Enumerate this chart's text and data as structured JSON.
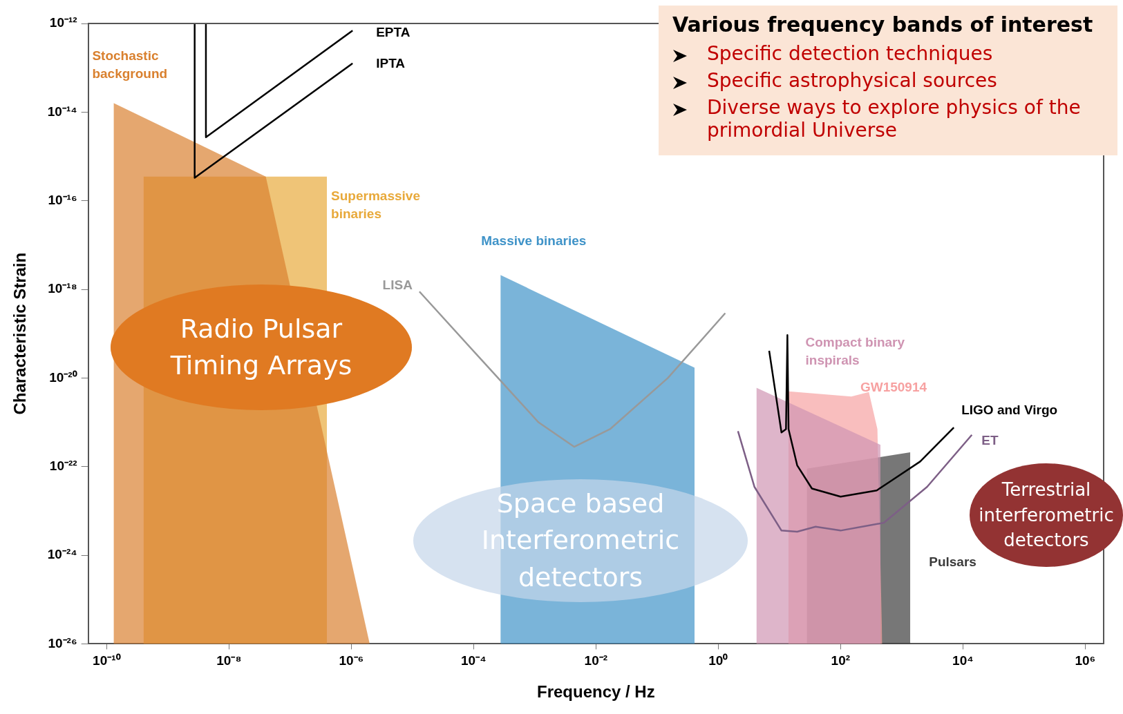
{
  "chart_data": {
    "type": "area",
    "xlabel": "Frequency / Hz",
    "ylabel": "Characteristic Strain",
    "log": "xy",
    "grid": false,
    "legend": false,
    "xlim": [
      5e-11,
      2000000.0
    ],
    "ylim": [
      1e-26,
      1e-12
    ],
    "xticks": [
      {
        "value": 1e-10,
        "label": "10⁻¹⁰"
      },
      {
        "value": 1e-08,
        "label": "10⁻⁸"
      },
      {
        "value": 1e-06,
        "label": "10⁻⁶"
      },
      {
        "value": 0.0001,
        "label": "10⁻⁴"
      },
      {
        "value": 0.01,
        "label": "10⁻²"
      },
      {
        "value": 1,
        "label": "10⁰"
      },
      {
        "value": 100,
        "label": "10²"
      },
      {
        "value": 10000,
        "label": "10⁴"
      },
      {
        "value": 1000000,
        "label": "10⁶"
      }
    ],
    "yticks": [
      {
        "value": 1e-12,
        "label": "10⁻¹²"
      },
      {
        "value": 1e-14,
        "label": "10⁻¹⁴"
      },
      {
        "value": 1e-16,
        "label": "10⁻¹⁶"
      },
      {
        "value": 1e-18,
        "label": "10⁻¹⁸"
      },
      {
        "value": 1e-20,
        "label": "10⁻²⁰"
      },
      {
        "value": 1e-22,
        "label": "10⁻²²"
      },
      {
        "value": 1e-24,
        "label": "10⁻²⁴"
      },
      {
        "value": 1e-26,
        "label": "10⁻²⁶"
      }
    ],
    "series": [
      {
        "name": "Stochastic background",
        "color": "#d9802e",
        "x": [
          1.3e-10,
          4e-08,
          2e-06
        ],
        "values": [
          1.6e-14,
          3.5e-16,
          1e-26
        ]
      },
      {
        "name": "Supermassive binaries",
        "color": "#e8a93a",
        "x": [
          4e-10,
          4e-07
        ],
        "values": [
          3.5e-16,
          3.5e-16
        ]
      },
      {
        "name": "Massive binaries",
        "color": "#3f93c8",
        "x": [
          0.000275,
          0.41
        ],
        "values": [
          2.1e-18,
          1.7e-20
        ]
      },
      {
        "name": "EPTA",
        "type": "line",
        "color": "#000000",
        "x": [
          4.2e-09,
          4.2e-09,
          1.05e-06
        ],
        "values": [
          1e-12,
          2.7e-15,
          6.9e-13
        ]
      },
      {
        "name": "IPTA",
        "type": "line",
        "color": "#000000",
        "x": [
          2.75e-09,
          2.75e-09,
          1.05e-06
        ],
        "values": [
          1e-12,
          3.3e-16,
          1.26e-13
        ]
      },
      {
        "name": "LISA",
        "type": "line",
        "color": "#999999",
        "x": [
          1.3e-05,
          0.00013,
          0.00115,
          0.0044,
          0.017,
          0.15,
          1.3
        ],
        "values": [
          8.9e-19,
          2.7e-20,
          1e-21,
          2.8e-22,
          7e-22,
          1e-20,
          2.9e-19
        ]
      },
      {
        "name": "Compact binary inspirals",
        "color": "#cf94b2",
        "x": [
          4.2,
          450
        ],
        "values": [
          6e-21,
          3.1e-22
        ]
      },
      {
        "name": "GW150914",
        "color": "#f7a1a1",
        "x": [
          14,
          150,
          290,
          400,
          480
        ],
        "values": [
          5e-21,
          3.8e-21,
          4.8e-21,
          7e-22,
          1e-26
        ]
      },
      {
        "name": "LIGO and Virgo",
        "type": "line",
        "color": "#000000",
        "x": [
          6.8,
          10.8,
          12.8,
          13.5,
          14.1,
          19.5,
          34,
          100,
          390,
          660,
          2000,
          7100
        ],
        "values": [
          4.1e-20,
          5.9e-22,
          7e-22,
          9.3e-20,
          7e-22,
          1.07e-22,
          3.2e-23,
          2.1e-23,
          2.9e-23,
          4.7e-23,
          1.3e-22,
          7.6e-22
        ]
      },
      {
        "name": "ET",
        "type": "line",
        "color": "#7d5f86",
        "x": [
          2.1,
          3.9,
          10.8,
          19.5,
          39,
          100,
          510,
          2600,
          14000
        ],
        "values": [
          6.3e-22,
          3.5e-23,
          3.6e-24,
          3.4e-24,
          4.4e-24,
          3.6e-24,
          5.4e-24,
          3.5e-23,
          5.2e-22
        ]
      },
      {
        "name": "Pulsars",
        "color": "#3a3a3a",
        "x": [
          28,
          1380
        ],
        "values": [
          9e-23,
          2.1e-22
        ]
      }
    ],
    "annotations": [
      "Various frequency bands of interest",
      "Specific detection techniques",
      "Specific astrophysical sources",
      "Diverse ways to explore physics of the primordial Universe",
      "Radio Pulsar Timing Arrays",
      "Space based Interferometric detectors",
      "Terrestrial interferometric detectors"
    ]
  }
}
